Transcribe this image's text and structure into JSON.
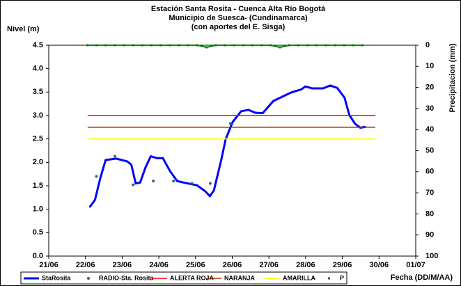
{
  "chart_data": {
    "type": "line",
    "title": [
      "Estación Santa Rosita - Cuenca Alta Río Bogotá",
      "Municipio de Suesca- (Cundinamarca)",
      "(con aportes del  E. Sisga)"
    ],
    "y_label": "Nivel (m)",
    "y2_label": "Precipitacion (mm)",
    "x_label": "Fecha (DD/M/AA)",
    "xlim": [
      21,
      31
    ],
    "xticks": [
      {
        "value": 21,
        "label": "21/06"
      },
      {
        "value": 22,
        "label": "22/06"
      },
      {
        "value": 23,
        "label": "23/06"
      },
      {
        "value": 24,
        "label": "24/06"
      },
      {
        "value": 25,
        "label": "25/06"
      },
      {
        "value": 26,
        "label": "26/06"
      },
      {
        "value": 27,
        "label": "27/06"
      },
      {
        "value": 28,
        "label": "28/06"
      },
      {
        "value": 29,
        "label": "29/06"
      },
      {
        "value": 30,
        "label": "30/06"
      },
      {
        "value": 31,
        "label": "01/07"
      }
    ],
    "ylim": [
      0,
      4.5
    ],
    "yticks": [
      {
        "value": 0,
        "label": "0.0"
      },
      0.5,
      {
        "value": 1,
        "label": "1.0"
      },
      1.5,
      {
        "value": 2,
        "label": "2.0"
      },
      2.5,
      {
        "value": 3,
        "label": "3.0"
      },
      3.5,
      {
        "value": 4,
        "label": "4.0"
      },
      4.5
    ],
    "y2lim": [
      100,
      0
    ],
    "y2ticks": [
      0,
      10,
      20,
      30,
      40,
      50,
      60,
      70,
      80,
      90,
      100
    ],
    "series": [
      {
        "name": "StaRosita",
        "color": "#0000ff",
        "marker": "line",
        "width": 3,
        "x": [
          22.11,
          22.26,
          22.4,
          22.55,
          22.84,
          23.14,
          23.25,
          23.37,
          23.49,
          23.64,
          23.78,
          23.95,
          24.11,
          24.3,
          24.5,
          24.73,
          25.04,
          25.27,
          25.39,
          25.5,
          25.7,
          25.82,
          26.01,
          26.24,
          26.44,
          26.63,
          26.83,
          27.12,
          27.6,
          27.89,
          27.99,
          28.18,
          28.48,
          28.67,
          28.86,
          29.06,
          29.19,
          29.35,
          29.49,
          29.64
        ],
        "values": [
          1.04,
          1.2,
          1.65,
          2.05,
          2.08,
          2.02,
          1.95,
          1.55,
          1.57,
          1.9,
          2.13,
          2.09,
          2.09,
          1.82,
          1.6,
          1.56,
          1.51,
          1.38,
          1.28,
          1.4,
          2.05,
          2.49,
          2.86,
          3.09,
          3.12,
          3.06,
          3.05,
          3.31,
          3.49,
          3.56,
          3.62,
          3.58,
          3.58,
          3.64,
          3.59,
          3.38,
          3.01,
          2.82,
          2.74,
          2.76
        ]
      },
      {
        "name": "RADIO-Sta. Rosita",
        "color": "#2f6f5f",
        "marker": "dot",
        "x": [
          22.3,
          22.8,
          23.3,
          23.85,
          24.4,
          24.9,
          25.4,
          25.95
        ],
        "values": [
          1.7,
          2.13,
          1.52,
          1.6,
          1.6,
          1.55,
          1.55,
          2.83
        ]
      },
      {
        "name": "ALERTA ROJA",
        "color": "#ff0000",
        "marker": "line",
        "width": 1.5,
        "x": [
          22.06,
          29.9
        ],
        "values": [
          3,
          3
        ]
      },
      {
        "name": "NARANJA",
        "color": "#993300",
        "marker": "line",
        "width": 1.5,
        "x": [
          22.06,
          29.9
        ],
        "values": [
          2.75,
          2.75
        ]
      },
      {
        "name": "AMARILLA",
        "color": "#ffff00",
        "marker": "line",
        "width": 1.5,
        "x": [
          22.06,
          29.9
        ],
        "values": [
          2.5,
          2.5
        ]
      },
      {
        "name": "P",
        "color": "#008000",
        "marker": "square",
        "axis": "y2",
        "x": [
          22.05,
          22.3,
          22.55,
          22.8,
          23.05,
          23.3,
          23.55,
          23.8,
          24.05,
          24.3,
          24.55,
          24.8,
          25.05,
          25.3,
          25.55,
          25.8,
          26.05,
          26.3,
          26.55,
          26.8,
          27.05,
          27.3,
          27.55,
          27.8,
          28.05,
          28.3,
          28.55,
          28.8,
          29.05,
          29.3,
          29.55
        ],
        "values": [
          0,
          0,
          0,
          0,
          0,
          0,
          0,
          0,
          0,
          0,
          0,
          0,
          0,
          1,
          0,
          0,
          0,
          0,
          0,
          0,
          0,
          1,
          0,
          0,
          0,
          0,
          0,
          0,
          0,
          0,
          0
        ]
      }
    ]
  }
}
